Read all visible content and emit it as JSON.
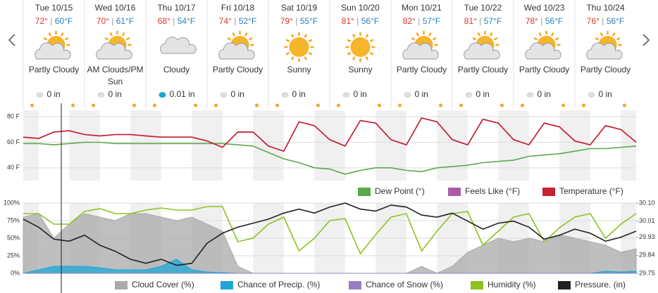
{
  "days": [
    {
      "date": "Tue 10/15",
      "high": "72°",
      "low": "60°F",
      "icon": "partly-cloudy",
      "condition": "Partly Cloudy",
      "precip": "0 in"
    },
    {
      "date": "Wed 10/16",
      "high": "70°",
      "low": "61°F",
      "icon": "partly-cloudy",
      "condition": "AM Clouds/PM Sun",
      "precip": "0 in"
    },
    {
      "date": "Thu 10/17",
      "high": "68°",
      "low": "54°F",
      "icon": "cloudy",
      "condition": "Cloudy",
      "precip": "0.01 in"
    },
    {
      "date": "Fri 10/18",
      "high": "74°",
      "low": "52°F",
      "icon": "partly-cloudy",
      "condition": "Partly Cloudy",
      "precip": "0 in"
    },
    {
      "date": "Sat 10/19",
      "high": "79°",
      "low": "55°F",
      "icon": "sunny",
      "condition": "Sunny",
      "precip": "0 in"
    },
    {
      "date": "Sun 10/20",
      "high": "81°",
      "low": "56°F",
      "icon": "sunny",
      "condition": "Sunny",
      "precip": "0 in"
    },
    {
      "date": "Mon 10/21",
      "high": "82°",
      "low": "57°F",
      "icon": "partly-cloudy",
      "condition": "Partly Cloudy",
      "precip": "0 in"
    },
    {
      "date": "Tue 10/22",
      "high": "81°",
      "low": "57°F",
      "icon": "partly-cloudy",
      "condition": "Partly Cloudy",
      "precip": "0 in"
    },
    {
      "date": "Wed 10/23",
      "high": "78°",
      "low": "56°F",
      "icon": "partly-cloudy",
      "condition": "Partly Cloudy",
      "precip": "0 in"
    },
    {
      "date": "Thu 10/24",
      "high": "76°",
      "low": "56°F",
      "icon": "partly-cloudy",
      "condition": "Partly Cloudy",
      "precip": "0 in"
    }
  ],
  "chart_data": [
    {
      "type": "line",
      "x": [
        0,
        6,
        12,
        18,
        24,
        30,
        36,
        42,
        48,
        54,
        60,
        66,
        72,
        78,
        84,
        90,
        96,
        102,
        108,
        114,
        120,
        126,
        132,
        138,
        144,
        150,
        156,
        162,
        168,
        174,
        180,
        186,
        192,
        198,
        204,
        210,
        216,
        222,
        228,
        234,
        240
      ],
      "xlim": [
        0,
        240
      ],
      "ylim": [
        30,
        85
      ],
      "yticks": [
        {
          "value": 80,
          "label": "80 F"
        },
        {
          "value": 60,
          "label": "60 F"
        },
        {
          "value": 40,
          "label": "40 F"
        }
      ],
      "series": [
        {
          "name": "Dew Point (°)",
          "color": "#5aa94b",
          "values": [
            59,
            59,
            58,
            59,
            60,
            60,
            59,
            59,
            59,
            59,
            59,
            59,
            59,
            59,
            58,
            57,
            52,
            47,
            44,
            40,
            39,
            35,
            38,
            40,
            40,
            38,
            37,
            40,
            41,
            42,
            44,
            45,
            46,
            49,
            50,
            51,
            53,
            55,
            55,
            56,
            57
          ]
        },
        {
          "name": "Feels Like (°F)",
          "color": "#a85ca8",
          "values": [
            64,
            63,
            68,
            69,
            66,
            65,
            66,
            66,
            65,
            64,
            64,
            64,
            61,
            56,
            68,
            68,
            57,
            53,
            76,
            73,
            62,
            57,
            77,
            75,
            62,
            58,
            79,
            76,
            62,
            58,
            78,
            75,
            62,
            58,
            75,
            72,
            61,
            58,
            73,
            70,
            60
          ]
        },
        {
          "name": "Temperature (°F)",
          "color": "#c8202e",
          "values": [
            64,
            63,
            68,
            69,
            66,
            65,
            66,
            66,
            65,
            64,
            64,
            64,
            61,
            56,
            68,
            68,
            57,
            53,
            76,
            73,
            62,
            57,
            77,
            75,
            62,
            58,
            79,
            76,
            62,
            58,
            78,
            75,
            62,
            58,
            75,
            72,
            61,
            58,
            73,
            70,
            60
          ]
        }
      ]
    },
    {
      "type": "line",
      "x": [
        0,
        6,
        12,
        18,
        24,
        30,
        36,
        42,
        48,
        54,
        60,
        66,
        72,
        78,
        84,
        90,
        96,
        102,
        108,
        114,
        120,
        126,
        132,
        138,
        144,
        150,
        156,
        162,
        168,
        174,
        180,
        186,
        192,
        198,
        204,
        210,
        216,
        222,
        228,
        234,
        240
      ],
      "xlim": [
        0,
        240
      ],
      "ylim": [
        0,
        100
      ],
      "yticks": [
        {
          "value": 100,
          "label": "100%"
        },
        {
          "value": 75,
          "label": "75%"
        },
        {
          "value": 50,
          "label": "50%"
        },
        {
          "value": 25,
          "label": "25%"
        },
        {
          "value": 0,
          "label": "0%"
        }
      ],
      "y2lim": [
        29.75,
        30.1
      ],
      "y2ticks": [
        {
          "value": 30.1,
          "label": "30.10"
        },
        30.01,
        29.93,
        29.84,
        29.75
      ],
      "series": [
        {
          "name": "Cloud Cover (%)",
          "color": "#aaaaaa",
          "area": true,
          "values": [
            80,
            85,
            50,
            70,
            85,
            80,
            75,
            85,
            85,
            80,
            75,
            80,
            70,
            60,
            10,
            0,
            0,
            0,
            0,
            0,
            0,
            0,
            0,
            0,
            0,
            0,
            10,
            0,
            10,
            30,
            40,
            50,
            45,
            50,
            45,
            55,
            50,
            45,
            40,
            30,
            35
          ]
        },
        {
          "name": "Chance of Precip. (%)",
          "color": "#1ea7d6",
          "area": true,
          "values": [
            0,
            5,
            10,
            10,
            10,
            8,
            5,
            5,
            5,
            10,
            20,
            5,
            2,
            1,
            0,
            0,
            0,
            0,
            0,
            0,
            0,
            0,
            0,
            0,
            0,
            0,
            0,
            0,
            0,
            0,
            0,
            0,
            0,
            0,
            0,
            0,
            0,
            0,
            3,
            2,
            3
          ]
        },
        {
          "name": "Chance of Snow (%)",
          "color": "#9a7fc0",
          "area": true,
          "values": [
            0,
            0,
            0,
            0,
            0,
            0,
            0,
            0,
            0,
            0,
            0,
            0,
            0,
            0,
            0,
            0,
            0,
            0,
            0,
            0,
            0,
            0,
            0,
            0,
            0,
            0,
            0,
            0,
            0,
            0,
            0,
            0,
            0,
            0,
            0,
            0,
            0,
            0,
            0,
            0,
            0
          ]
        },
        {
          "name": "Humidity (%)",
          "color": "#8dc21f",
          "values": [
            85,
            85,
            70,
            70,
            88,
            92,
            85,
            85,
            90,
            93,
            90,
            90,
            95,
            95,
            45,
            50,
            70,
            80,
            32,
            50,
            75,
            78,
            28,
            55,
            80,
            85,
            32,
            60,
            85,
            88,
            40,
            60,
            80,
            85,
            45,
            65,
            80,
            85,
            50,
            70,
            85
          ]
        },
        {
          "name": "Pressure. (in)",
          "color": "#222222",
          "axis": "y2",
          "values": [
            30.02,
            29.98,
            29.92,
            29.91,
            29.94,
            29.89,
            29.86,
            29.82,
            29.8,
            29.82,
            29.79,
            29.8,
            29.9,
            29.95,
            29.98,
            30,
            30.02,
            30.05,
            30.07,
            30.05,
            30.08,
            30.1,
            30.07,
            30.06,
            30.09,
            30.08,
            30.04,
            30.03,
            30.05,
            30.01,
            29.97,
            30,
            30.01,
            29.98,
            29.92,
            29.94,
            29.97,
            29.95,
            29.91,
            29.93,
            29.96
          ]
        }
      ]
    }
  ]
}
